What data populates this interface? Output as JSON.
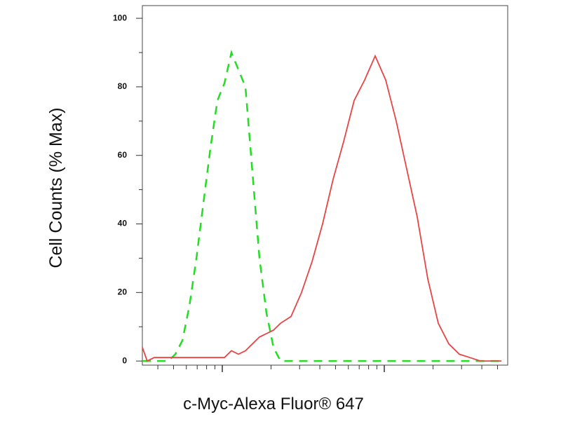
{
  "chart_data": {
    "type": "line",
    "xlabel": "c-Myc-Alexa Fluor® 647",
    "ylabel": "Cell Counts (% Max)",
    "xscale": "log",
    "x": [
      321,
      344,
      380,
      420,
      464,
      513,
      567,
      626,
      692,
      764,
      844,
      933,
      1030,
      1138,
      1258,
      1390,
      1535,
      1696,
      1874,
      2070,
      2287,
      2656,
      3085,
      3582,
      4159,
      4831,
      5609,
      6515,
      7566,
      8785,
      10200,
      11846,
      13755,
      15975,
      18550,
      21544,
      25020,
      29050,
      33740,
      39180,
      45500,
      52840
    ],
    "series": [
      {
        "color": "#22dd22",
        "dashed": true,
        "values": [
          0,
          0,
          0,
          0,
          0,
          2,
          6,
          16,
          30,
          46,
          62,
          76,
          81,
          90,
          85,
          80,
          55,
          30,
          14,
          4,
          0,
          0,
          0,
          0,
          0,
          0,
          0,
          0,
          0,
          0,
          0,
          0,
          0,
          0,
          0,
          0,
          0,
          0,
          0,
          0,
          0,
          0
        ]
      },
      {
        "color": "#e84444",
        "dashed": false,
        "values": [
          4,
          0,
          1,
          1,
          1,
          1,
          1,
          1,
          1,
          1,
          1,
          1,
          1,
          3,
          2,
          3,
          5,
          7,
          8,
          9,
          11,
          13,
          20,
          29,
          40,
          53,
          64,
          76,
          82,
          89,
          82,
          70,
          56,
          42,
          24,
          11,
          5,
          2,
          1,
          0,
          0,
          0
        ]
      }
    ],
    "xlim": [
      321,
      57800
    ],
    "xticks": [
      1000,
      10000
    ],
    "xminorticks": [
      400,
      500,
      600,
      700,
      800,
      900,
      2000,
      3000,
      4000,
      5000,
      6000,
      7000,
      8000,
      9000,
      20000,
      30000,
      40000,
      50000
    ],
    "ylim": [
      -1.2,
      103.7
    ],
    "yticks": [
      0,
      20,
      40,
      60,
      80,
      100
    ],
    "yminorticks": [
      10,
      30,
      50,
      70,
      90
    ]
  }
}
